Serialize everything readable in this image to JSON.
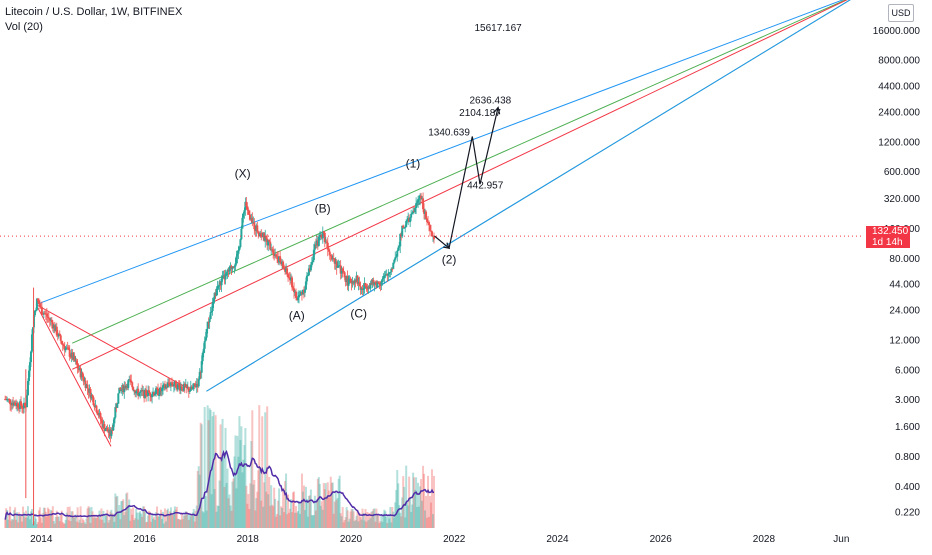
{
  "header": {
    "title": "Litecoin / U.S. Dollar, 1W, BITFINEX",
    "volume_label": "Vol (20)"
  },
  "price_axis": {
    "currency": "USD",
    "current_price": "132.450",
    "countdown": "1d 14h"
  },
  "colors": {
    "blue_line": "#2196f3",
    "green_line": "#4caf50",
    "red_line": "#f23645",
    "candle_up": "#26a69a",
    "candle_down": "#ef5350",
    "volume_ma": "#512da8",
    "price_marker": "#f23645"
  },
  "chart_data": {
    "type": "candlestick",
    "title": "Litecoin / U.S. Dollar, 1W, BITFINEX",
    "y_scale": "log",
    "ylim": [
      0.15,
      32000
    ],
    "xlim": [
      2013.2,
      2029.9
    ],
    "y_ticks": [
      "32000.000",
      "16000.000",
      "8000.000",
      "4400.000",
      "2400.000",
      "1200.000",
      "600.000",
      "320.000",
      "160.000",
      "80.000",
      "44.000",
      "24.000",
      "12.000",
      "6.000",
      "3.000",
      "1.600",
      "0.800",
      "0.400",
      "0.220"
    ],
    "x_ticks": [
      "2014",
      "2016",
      "2018",
      "2020",
      "2022",
      "2024",
      "2026",
      "2028",
      "Jun"
    ],
    "price_path": [
      [
        2013.3,
        3.0
      ],
      [
        2013.5,
        2.7
      ],
      [
        2013.7,
        2.5
      ],
      [
        2013.85,
        20
      ],
      [
        2013.92,
        30
      ],
      [
        2014.0,
        24
      ],
      [
        2014.2,
        18
      ],
      [
        2014.4,
        11
      ],
      [
        2014.6,
        8
      ],
      [
        2014.8,
        5
      ],
      [
        2015.0,
        3.0
      ],
      [
        2015.2,
        1.6
      ],
      [
        2015.35,
        1.3
      ],
      [
        2015.5,
        3.5
      ],
      [
        2015.7,
        4.5
      ],
      [
        2015.85,
        3.5
      ],
      [
        2016.0,
        3.4
      ],
      [
        2016.3,
        3.6
      ],
      [
        2016.5,
        4.4
      ],
      [
        2016.7,
        4.0
      ],
      [
        2016.9,
        3.7
      ],
      [
        2017.05,
        4.5
      ],
      [
        2017.2,
        15
      ],
      [
        2017.4,
        40
      ],
      [
        2017.6,
        55
      ],
      [
        2017.8,
        80
      ],
      [
        2017.95,
        300
      ],
      [
        2018.05,
        190
      ],
      [
        2018.25,
        140
      ],
      [
        2018.45,
        105
      ],
      [
        2018.65,
        70
      ],
      [
        2018.85,
        45
      ],
      [
        2018.95,
        30
      ],
      [
        2019.1,
        40
      ],
      [
        2019.3,
        100
      ],
      [
        2019.45,
        145
      ],
      [
        2019.6,
        90
      ],
      [
        2019.8,
        60
      ],
      [
        2019.95,
        45
      ],
      [
        2020.1,
        50
      ],
      [
        2020.2,
        38
      ],
      [
        2020.3,
        43
      ],
      [
        2020.5,
        44
      ],
      [
        2020.7,
        52
      ],
      [
        2020.85,
        75
      ],
      [
        2021.0,
        160
      ],
      [
        2021.2,
        220
      ],
      [
        2021.35,
        360
      ],
      [
        2021.45,
        200
      ],
      [
        2021.55,
        135
      ],
      [
        2021.62,
        132.45
      ]
    ],
    "volume_ma_note": "Vol (20)",
    "pitchfork_lines": [
      {
        "color": "blue",
        "from": [
          2013.9,
          27
        ],
        "to": [
          2029.9,
          38000
        ]
      },
      {
        "color": "green",
        "from": [
          2014.6,
          11
        ],
        "to": [
          2029.9,
          38000
        ]
      },
      {
        "color": "red",
        "from": [
          2014.6,
          6
        ],
        "to": [
          2029.9,
          38000
        ]
      },
      {
        "color": "green",
        "from": [
          2017.2,
          3.6
        ],
        "to": [
          2029.9,
          38000
        ]
      },
      {
        "color": "blue",
        "from": [
          2017.2,
          3.6
        ],
        "to": [
          2029.9,
          38000
        ]
      }
    ],
    "projection": [
      [
        2021.62,
        132.45
      ],
      [
        2021.9,
        100
      ],
      [
        2022.35,
        1340.639
      ],
      [
        2022.5,
        442.957
      ],
      [
        2022.85,
        2636.438
      ]
    ],
    "wave_labels": [
      {
        "text": "(X)",
        "x": 2017.9,
        "y": 520
      },
      {
        "text": "(B)",
        "x": 2019.45,
        "y": 230
      },
      {
        "text": "(A)",
        "x": 2018.95,
        "y": 19
      },
      {
        "text": "(C)",
        "x": 2020.15,
        "y": 20
      },
      {
        "text": "(1)",
        "x": 2021.2,
        "y": 650
      },
      {
        "text": "(2)",
        "x": 2021.9,
        "y": 70
      }
    ],
    "target_labels": [
      {
        "text": "15617.167",
        "x": 2022.85,
        "y": 15600
      },
      {
        "text": "2636.438",
        "x": 2022.7,
        "y": 2900
      },
      {
        "text": "2104.187",
        "x": 2022.5,
        "y": 2150
      },
      {
        "text": "1340.639",
        "x": 2021.9,
        "y": 1380
      },
      {
        "text": "442.957",
        "x": 2022.6,
        "y": 400
      }
    ]
  }
}
